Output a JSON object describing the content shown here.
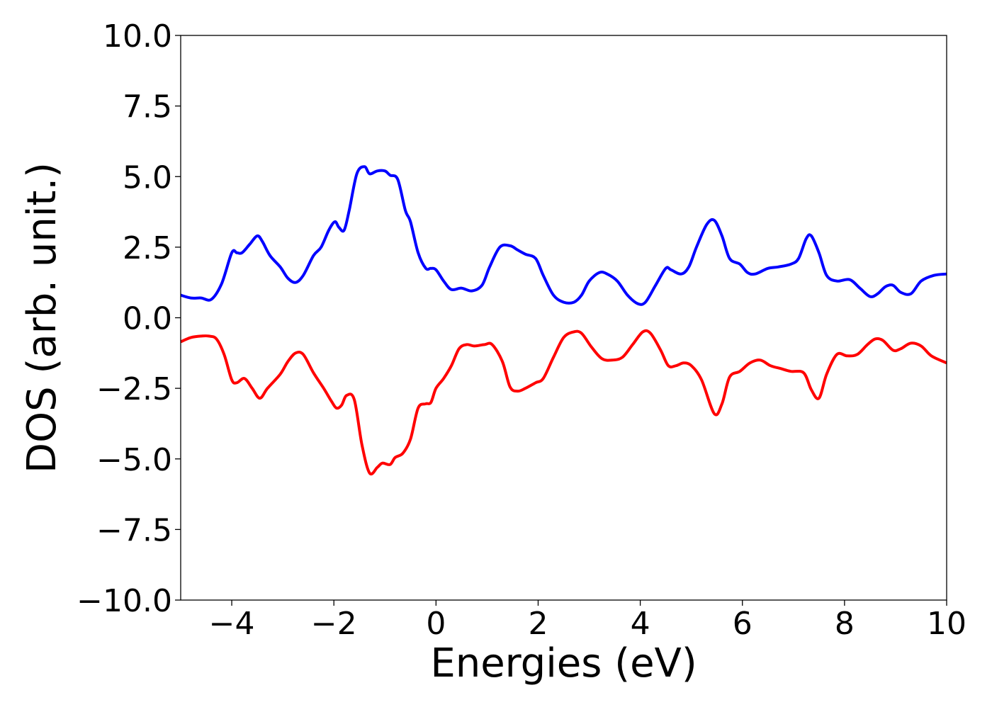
{
  "chart_data": {
    "type": "line",
    "title": "",
    "xlabel": "Energies (eV)",
    "ylabel": "DOS (arb. unit.)",
    "xlim": [
      -5,
      10
    ],
    "ylim": [
      -10,
      10
    ],
    "x_ticks": [
      {
        "value": -4,
        "label": "−4"
      },
      {
        "value": -2,
        "label": "−2"
      },
      {
        "value": 0,
        "label": "0"
      },
      {
        "value": 2,
        "label": "2"
      },
      {
        "value": 4,
        "label": "4"
      },
      {
        "value": 6,
        "label": "6"
      },
      {
        "value": 8,
        "label": "8"
      },
      {
        "value": 10,
        "label": "10"
      }
    ],
    "y_ticks": [
      {
        "value": 10,
        "label": "10.0"
      },
      {
        "value": 7.5,
        "label": "7.5"
      },
      {
        "value": 5,
        "label": "5.0"
      },
      {
        "value": 2.5,
        "label": "2.5"
      },
      {
        "value": 0,
        "label": "0.0"
      },
      {
        "value": -2.5,
        "label": "−2.5"
      },
      {
        "value": -5,
        "label": "−5.0"
      },
      {
        "value": -7.5,
        "label": "−7.5"
      },
      {
        "value": -10,
        "label": "−10.0"
      }
    ],
    "grid": false,
    "legend": "none",
    "series": [
      {
        "color": "#0000ff",
        "x": [
          -5.0,
          -4.8,
          -4.6,
          -4.4,
          -4.2,
          -4.0,
          -3.9,
          -3.8,
          -3.65,
          -3.5,
          -3.4,
          -3.25,
          -3.05,
          -2.9,
          -2.75,
          -2.6,
          -2.4,
          -2.25,
          -2.1,
          -1.98,
          -1.9,
          -1.8,
          -1.7,
          -1.55,
          -1.4,
          -1.3,
          -1.15,
          -1.0,
          -0.9,
          -0.75,
          -0.6,
          -0.5,
          -0.35,
          -0.2,
          -0.1,
          0.0,
          0.15,
          0.3,
          0.5,
          0.7,
          0.9,
          1.05,
          1.25,
          1.45,
          1.6,
          1.75,
          1.95,
          2.1,
          2.3,
          2.5,
          2.7,
          2.85,
          3.0,
          3.2,
          3.35,
          3.55,
          3.75,
          3.95,
          4.1,
          4.3,
          4.5,
          4.6,
          4.8,
          4.95,
          5.1,
          5.3,
          5.45,
          5.6,
          5.75,
          5.95,
          6.1,
          6.25,
          6.5,
          6.7,
          6.95,
          7.1,
          7.25,
          7.35,
          7.5,
          7.65,
          7.85,
          8.1,
          8.3,
          8.5,
          8.65,
          8.8,
          8.95,
          9.1,
          9.3,
          9.5,
          9.75,
          10.0
        ],
        "y": [
          0.8,
          0.7,
          0.7,
          0.65,
          1.2,
          2.3,
          2.3,
          2.3,
          2.6,
          2.9,
          2.7,
          2.2,
          1.8,
          1.4,
          1.25,
          1.5,
          2.2,
          2.5,
          3.1,
          3.4,
          3.2,
          3.1,
          3.8,
          5.1,
          5.35,
          5.1,
          5.2,
          5.2,
          5.05,
          4.9,
          3.8,
          3.4,
          2.3,
          1.75,
          1.75,
          1.7,
          1.3,
          1.0,
          1.05,
          0.95,
          1.15,
          1.8,
          2.5,
          2.55,
          2.4,
          2.25,
          2.1,
          1.5,
          0.8,
          0.55,
          0.55,
          0.8,
          1.3,
          1.6,
          1.55,
          1.3,
          0.8,
          0.5,
          0.55,
          1.15,
          1.75,
          1.7,
          1.55,
          1.8,
          2.5,
          3.3,
          3.45,
          2.9,
          2.1,
          1.9,
          1.6,
          1.55,
          1.75,
          1.8,
          1.9,
          2.1,
          2.8,
          2.9,
          2.3,
          1.5,
          1.3,
          1.35,
          1.05,
          0.75,
          0.85,
          1.1,
          1.15,
          0.9,
          0.85,
          1.3,
          1.5,
          1.55
        ]
      },
      {
        "color": "#ff0000",
        "x": [
          -5.0,
          -4.8,
          -4.6,
          -4.45,
          -4.3,
          -4.15,
          -4.0,
          -3.9,
          -3.75,
          -3.6,
          -3.45,
          -3.3,
          -3.05,
          -2.9,
          -2.75,
          -2.6,
          -2.4,
          -2.2,
          -2.05,
          -1.95,
          -1.85,
          -1.75,
          -1.6,
          -1.45,
          -1.3,
          -1.15,
          -1.05,
          -0.9,
          -0.8,
          -0.65,
          -0.5,
          -0.35,
          -0.2,
          -0.1,
          0.0,
          0.15,
          0.3,
          0.45,
          0.6,
          0.75,
          0.95,
          1.1,
          1.3,
          1.45,
          1.6,
          1.75,
          1.95,
          2.1,
          2.3,
          2.5,
          2.7,
          2.85,
          3.05,
          3.25,
          3.45,
          3.65,
          3.85,
          4.05,
          4.2,
          4.4,
          4.55,
          4.7,
          4.85,
          5.0,
          5.2,
          5.45,
          5.6,
          5.75,
          5.95,
          6.15,
          6.35,
          6.55,
          6.75,
          6.95,
          7.2,
          7.35,
          7.5,
          7.65,
          7.85,
          8.05,
          8.25,
          8.45,
          8.6,
          8.75,
          8.95,
          9.1,
          9.3,
          9.5,
          9.7,
          10.0
        ],
        "y": [
          -0.85,
          -0.7,
          -0.65,
          -0.65,
          -0.75,
          -1.3,
          -2.2,
          -2.3,
          -2.15,
          -2.5,
          -2.85,
          -2.5,
          -2.0,
          -1.55,
          -1.25,
          -1.3,
          -1.95,
          -2.5,
          -2.95,
          -3.2,
          -3.1,
          -2.75,
          -2.9,
          -4.5,
          -5.5,
          -5.3,
          -5.15,
          -5.2,
          -4.95,
          -4.8,
          -4.3,
          -3.2,
          -3.05,
          -3.0,
          -2.5,
          -2.15,
          -1.7,
          -1.1,
          -0.95,
          -1.0,
          -0.95,
          -0.95,
          -1.55,
          -2.45,
          -2.6,
          -2.5,
          -2.3,
          -2.15,
          -1.4,
          -0.7,
          -0.5,
          -0.55,
          -1.05,
          -1.45,
          -1.5,
          -1.4,
          -0.95,
          -0.5,
          -0.55,
          -1.15,
          -1.7,
          -1.7,
          -1.6,
          -1.7,
          -2.2,
          -3.4,
          -3.05,
          -2.1,
          -1.9,
          -1.6,
          -1.5,
          -1.7,
          -1.8,
          -1.9,
          -1.95,
          -2.55,
          -2.85,
          -2.0,
          -1.3,
          -1.35,
          -1.3,
          -0.95,
          -0.75,
          -0.8,
          -1.15,
          -1.1,
          -0.9,
          -1.0,
          -1.35,
          -1.6
        ]
      }
    ]
  }
}
